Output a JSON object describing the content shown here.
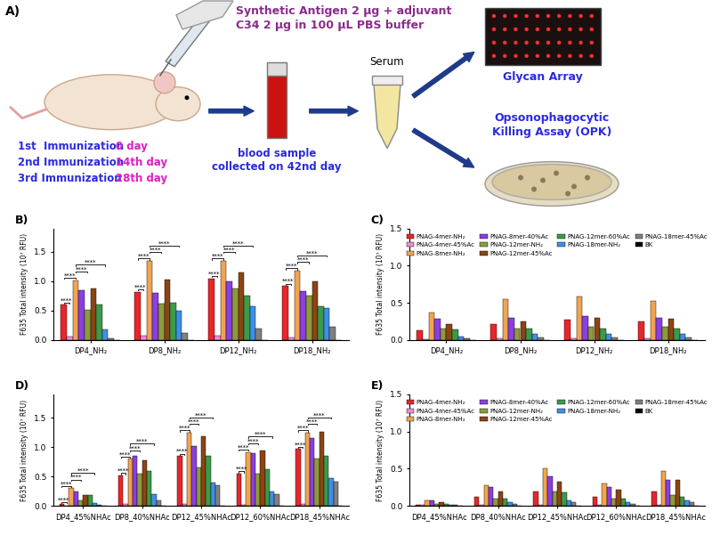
{
  "diagram": {
    "label": "A)",
    "injection": [
      "Synthetic Antigen 2 µg + adjuvant",
      "C34 2 µg in 100 µL PBS buffer"
    ],
    "schedule": [
      [
        "1st  Immunization",
        "0 day"
      ],
      [
        "2nd Immunization",
        "14th day"
      ],
      [
        "3rd Immunization",
        "28th day"
      ]
    ],
    "blood": [
      "blood sample",
      "collected on 42nd day"
    ],
    "serum": "Serum",
    "array": "Glycan Array",
    "opk": [
      "Opsonophagocytic",
      "Killing Assay (OPK)"
    ]
  },
  "chart_data": [
    {
      "type": "bar",
      "title": "B)",
      "ylabel": "F635 Total intensity (10⁷ RFU)",
      "categories": [
        "DP4_NH₂",
        "DP8_NH₂",
        "DP12_NH₂",
        "DP18_NH₂"
      ],
      "ylim": [
        0,
        1.9
      ],
      "yticks": [
        {
          "value": 0,
          "label": "0.0"
        },
        0.5,
        {
          "value": 1,
          "label": "1.0"
        },
        1.5
      ],
      "series": [
        {
          "name": "PNAG-4mer-NH₂",
          "color": "#e8262a",
          "values": [
            0.6,
            0.82,
            1.05,
            0.92
          ]
        },
        {
          "name": "PNAG-4mer-45%Ac",
          "color": "#f08ad8",
          "values": [
            0.06,
            0.08,
            0.08,
            0.05
          ]
        },
        {
          "name": "PNAG-8mer-NH₂",
          "color": "#f3a34f",
          "values": [
            1.02,
            1.35,
            1.35,
            1.18
          ]
        },
        {
          "name": "PNAG-8mer-40%Ac",
          "color": "#8a3fe0",
          "values": [
            0.85,
            0.8,
            1.0,
            0.83
          ]
        },
        {
          "name": "PNAG-12mer-NH₂",
          "color": "#8f9a3c",
          "values": [
            0.52,
            0.62,
            0.88,
            0.75
          ]
        },
        {
          "name": "PNAG-12mer-45%Ac",
          "color": "#8b4513",
          "values": [
            0.88,
            1.03,
            1.15,
            1.0
          ]
        },
        {
          "name": "PNAG-12mer-60%Ac",
          "color": "#3c9a4a",
          "values": [
            0.6,
            0.63,
            0.75,
            0.58
          ]
        },
        {
          "name": "PNAG-18mer-NH₂",
          "color": "#3f8fe6",
          "values": [
            0.18,
            0.5,
            0.58,
            0.55
          ]
        },
        {
          "name": "PNAG-18mer-45%Ac",
          "color": "#808080",
          "values": [
            0.03,
            0.12,
            0.2,
            0.22
          ]
        },
        {
          "name": "BK",
          "color": "#000000",
          "values": [
            0,
            0,
            0,
            0
          ]
        }
      ],
      "significance": [
        {
          "category": "DP4_NH₂",
          "text": "****",
          "pairs": [
            [
              "PNAG-4mer-NH₂",
              "PNAG-4mer-45%Ac"
            ],
            [
              "PNAG-4mer-NH₂",
              "PNAG-8mer-NH₂"
            ],
            [
              "PNAG-8mer-NH₂",
              "PNAG-12mer-NH₂"
            ],
            [
              "PNAG-8mer-NH₂",
              "PNAG-18mer-NH₂"
            ]
          ]
        },
        {
          "category": "DP8_NH₂",
          "text": "****",
          "pairs": [
            [
              "PNAG-4mer-NH₂",
              "PNAG-4mer-45%Ac"
            ],
            [
              "PNAG-4mer-NH₂",
              "PNAG-8mer-NH₂"
            ],
            [
              "PNAG-8mer-NH₂",
              "PNAG-12mer-NH₂"
            ],
            [
              "PNAG-8mer-NH₂",
              "PNAG-18mer-NH₂"
            ]
          ]
        },
        {
          "category": "DP12_NH₂",
          "text": "****",
          "pairs": [
            [
              "PNAG-4mer-NH₂",
              "PNAG-4mer-45%Ac"
            ],
            [
              "PNAG-4mer-NH₂",
              "PNAG-8mer-NH₂"
            ],
            [
              "PNAG-8mer-NH₂",
              "PNAG-12mer-NH₂"
            ],
            [
              "PNAG-8mer-NH₂",
              "PNAG-18mer-NH₂"
            ]
          ]
        },
        {
          "category": "DP18_NH₂",
          "text": "****",
          "pairs": [
            [
              "PNAG-4mer-NH₂",
              "PNAG-4mer-45%Ac"
            ],
            [
              "PNAG-4mer-NH₂",
              "PNAG-8mer-NH₂"
            ],
            [
              "PNAG-8mer-NH₂",
              "PNAG-12mer-NH₂"
            ],
            [
              "PNAG-8mer-NH₂",
              "PNAG-18mer-NH₂"
            ]
          ]
        }
      ]
    },
    {
      "type": "bar",
      "title": "C)",
      "ylabel": "F635 Total intensity (10⁷ RFU)",
      "legend": "upper center",
      "categories": [
        "DP4_NH₂",
        "DP8_NH₂",
        "DP12_NH₂",
        "DP18_NH₂"
      ],
      "ylim": [
        0,
        1.5
      ],
      "yticks": [
        {
          "value": 0,
          "label": "0.0"
        },
        0.5,
        {
          "value": 1,
          "label": "1.0"
        },
        1.5
      ],
      "series": [
        {
          "name": "PNAG-4mer-NH₂",
          "color": "#e8262a",
          "values": [
            0.13,
            0.22,
            0.27,
            0.25
          ]
        },
        {
          "name": "PNAG-4mer-45%Ac",
          "color": "#f08ad8",
          "values": [
            0.01,
            0.02,
            0.02,
            0.02
          ]
        },
        {
          "name": "PNAG-8mer-NH₂",
          "color": "#f3a34f",
          "values": [
            0.37,
            0.55,
            0.58,
            0.52
          ]
        },
        {
          "name": "PNAG-8mer-40%Ac",
          "color": "#8a3fe0",
          "values": [
            0.28,
            0.3,
            0.32,
            0.3
          ]
        },
        {
          "name": "PNAG-12mer-NH₂",
          "color": "#8f9a3c",
          "values": [
            0.15,
            0.15,
            0.18,
            0.18
          ]
        },
        {
          "name": "PNAG-12mer-45%Ac",
          "color": "#8b4513",
          "values": [
            0.22,
            0.25,
            0.3,
            0.28
          ]
        },
        {
          "name": "PNAG-12mer-60%Ac",
          "color": "#3c9a4a",
          "values": [
            0.14,
            0.15,
            0.16,
            0.15
          ]
        },
        {
          "name": "PNAG-18mer-NH₂",
          "color": "#3f8fe6",
          "values": [
            0.05,
            0.08,
            0.08,
            0.08
          ]
        },
        {
          "name": "PNAG-18mer-45%Ac",
          "color": "#808080",
          "values": [
            0.02,
            0.03,
            0.03,
            0.03
          ]
        },
        {
          "name": "BK",
          "color": "#000000",
          "values": [
            0,
            0,
            0,
            0
          ]
        }
      ]
    },
    {
      "type": "bar",
      "title": "D)",
      "ylabel": "F635 Total intensity (10⁷ RFU)",
      "categories": [
        "DP4_45%NHAc",
        "DP8_40%NHAc",
        "DP12_45%NHAc",
        "DP12_60%NHAc",
        "DP18_45%NHAc"
      ],
      "ylim": [
        0,
        1.9
      ],
      "yticks": [
        {
          "value": 0,
          "label": "0.0"
        },
        0.5,
        {
          "value": 1,
          "label": "1.0"
        },
        1.5
      ],
      "series": [
        {
          "name": "PNAG-4mer-NH₂",
          "color": "#e8262a",
          "values": [
            0.03,
            0.52,
            0.85,
            0.55,
            0.97
          ]
        },
        {
          "name": "PNAG-4mer-45%Ac",
          "color": "#f08ad8",
          "values": [
            0.01,
            0.03,
            0.03,
            0.02,
            0.03
          ]
        },
        {
          "name": "PNAG-8mer-NH₂",
          "color": "#f3a34f",
          "values": [
            0.3,
            0.8,
            1.25,
            0.92,
            1.25
          ]
        },
        {
          "name": "PNAG-8mer-40%Ac",
          "color": "#8a3fe0",
          "values": [
            0.25,
            0.85,
            1.02,
            0.9,
            1.15
          ]
        },
        {
          "name": "PNAG-12mer-NH₂",
          "color": "#8f9a3c",
          "values": [
            0.1,
            0.55,
            0.65,
            0.55,
            0.8
          ]
        },
        {
          "name": "PNAG-12mer-45%Ac",
          "color": "#8b4513",
          "values": [
            0.18,
            0.78,
            1.18,
            0.95,
            1.27
          ]
        },
        {
          "name": "PNAG-12mer-60%Ac",
          "color": "#3c9a4a",
          "values": [
            0.18,
            0.6,
            0.85,
            0.62,
            0.85
          ]
        },
        {
          "name": "PNAG-18mer-NH₂",
          "color": "#3f8fe6",
          "values": [
            0.05,
            0.2,
            0.4,
            0.25,
            0.48
          ]
        },
        {
          "name": "PNAG-18mer-45%Ac",
          "color": "#808080",
          "values": [
            0.02,
            0.1,
            0.35,
            0.2,
            0.42
          ]
        },
        {
          "name": "BK",
          "color": "#000000",
          "values": [
            0,
            0,
            0,
            0,
            0
          ]
        }
      ],
      "significance": [
        {
          "category": "DP4_45%NHAc",
          "text": "****",
          "pairs": [
            [
              "PNAG-4mer-NH₂",
              "PNAG-4mer-45%Ac"
            ],
            [
              "PNAG-4mer-NH₂",
              "PNAG-8mer-NH₂"
            ],
            [
              "PNAG-8mer-NH₂",
              "PNAG-12mer-NH₂"
            ],
            [
              "PNAG-8mer-NH₂",
              "PNAG-18mer-NH₂"
            ]
          ]
        },
        {
          "category": "DP8_40%NHAc",
          "text": "****",
          "pairs": [
            [
              "PNAG-4mer-NH₂",
              "PNAG-4mer-45%Ac"
            ],
            [
              "PNAG-4mer-NH₂",
              "PNAG-8mer-NH₂"
            ],
            [
              "PNAG-8mer-NH₂",
              "PNAG-12mer-NH₂"
            ],
            [
              "PNAG-8mer-NH₂",
              "PNAG-18mer-NH₂"
            ]
          ]
        },
        {
          "category": "DP12_45%NHAc",
          "text": "****",
          "pairs": [
            [
              "PNAG-4mer-NH₂",
              "PNAG-4mer-45%Ac"
            ],
            [
              "PNAG-4mer-NH₂",
              "PNAG-8mer-NH₂"
            ],
            [
              "PNAG-8mer-NH₂",
              "PNAG-12mer-NH₂"
            ],
            [
              "PNAG-8mer-NH₂",
              "PNAG-18mer-NH₂"
            ]
          ]
        },
        {
          "category": "DP12_60%NHAc",
          "text": "****",
          "pairs": [
            [
              "PNAG-4mer-NH₂",
              "PNAG-4mer-45%Ac"
            ],
            [
              "PNAG-4mer-NH₂",
              "PNAG-8mer-NH₂"
            ],
            [
              "PNAG-8mer-NH₂",
              "PNAG-12mer-NH₂"
            ],
            [
              "PNAG-8mer-NH₂",
              "PNAG-18mer-NH₂"
            ]
          ]
        },
        {
          "category": "DP18_45%NHAc",
          "text": "****",
          "pairs": [
            [
              "PNAG-4mer-NH₂",
              "PNAG-4mer-45%Ac"
            ],
            [
              "PNAG-4mer-NH₂",
              "PNAG-8mer-NH₂"
            ],
            [
              "PNAG-8mer-NH₂",
              "PNAG-12mer-NH₂"
            ],
            [
              "PNAG-8mer-NH₂",
              "PNAG-18mer-NH₂"
            ]
          ]
        }
      ]
    },
    {
      "type": "bar",
      "title": "E)",
      "ylabel": "F635 Total intensity (10⁷ RFU)",
      "legend": "upper center",
      "categories": [
        "DP4_45%NHAc",
        "DP8_40%NHAc",
        "DP12_45%NHAc",
        "DP12_60%NHAc",
        "DP18_45%NHAc"
      ],
      "ylim": [
        0,
        1.5
      ],
      "yticks": [
        {
          "value": 0,
          "label": "0.0"
        },
        0.5,
        {
          "value": 1,
          "label": "1.0"
        },
        1.5
      ],
      "series": [
        {
          "name": "PNAG-4mer-NH₂",
          "color": "#e8262a",
          "values": [
            0.01,
            0.12,
            0.2,
            0.12,
            0.2
          ]
        },
        {
          "name": "PNAG-4mer-45%Ac",
          "color": "#f08ad8",
          "values": [
            0.01,
            0.01,
            0.02,
            0.01,
            0.02
          ]
        },
        {
          "name": "PNAG-8mer-NH₂",
          "color": "#f3a34f",
          "values": [
            0.08,
            0.28,
            0.5,
            0.3,
            0.47
          ]
        },
        {
          "name": "PNAG-8mer-40%Ac",
          "color": "#8a3fe0",
          "values": [
            0.07,
            0.25,
            0.4,
            0.25,
            0.35
          ]
        },
        {
          "name": "PNAG-12mer-NH₂",
          "color": "#8f9a3c",
          "values": [
            0.03,
            0.1,
            0.2,
            0.1,
            0.15
          ]
        },
        {
          "name": "PNAG-12mer-45%Ac",
          "color": "#8b4513",
          "values": [
            0.05,
            0.2,
            0.33,
            0.22,
            0.35
          ]
        },
        {
          "name": "PNAG-12mer-60%Ac",
          "color": "#3c9a4a",
          "values": [
            0.03,
            0.1,
            0.18,
            0.1,
            0.12
          ]
        },
        {
          "name": "PNAG-18mer-NH₂",
          "color": "#3f8fe6",
          "values": [
            0.01,
            0.05,
            0.07,
            0.05,
            0.07
          ]
        },
        {
          "name": "PNAG-18mer-45%Ac",
          "color": "#808080",
          "values": [
            0.01,
            0.03,
            0.05,
            0.03,
            0.05
          ]
        },
        {
          "name": "BK",
          "color": "#000000",
          "values": [
            0,
            0,
            0,
            0,
            0
          ]
        }
      ]
    }
  ]
}
